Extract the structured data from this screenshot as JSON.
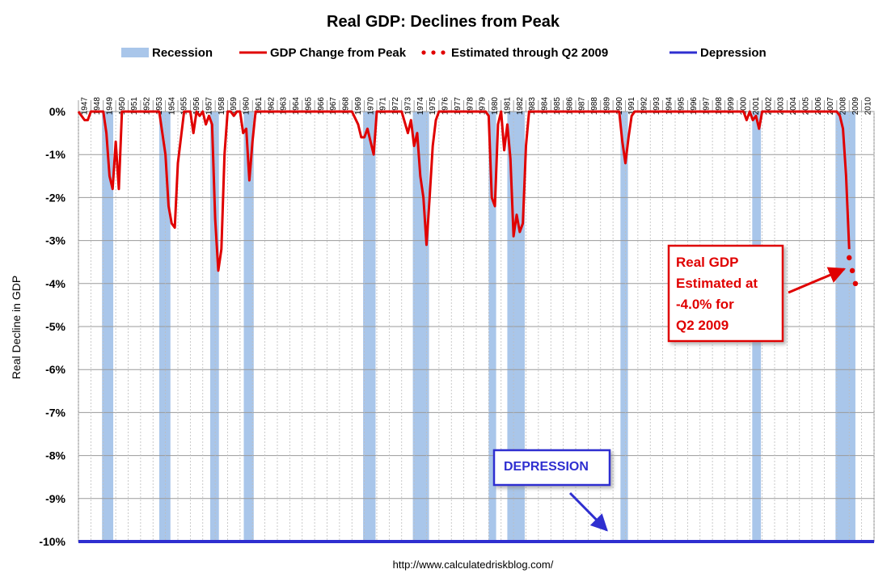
{
  "chart_data": {
    "type": "line",
    "title": "Real GDP: Declines from Peak",
    "ylabel": "Real Decline in GDP",
    "xlabel": "",
    "source": "http://www.calculatedriskblog.com/",
    "ylim": [
      -10,
      0
    ],
    "xlim": [
      1947,
      2011
    ],
    "yticks": [
      "0%",
      "-1%",
      "-2%",
      "-3%",
      "-4%",
      "-5%",
      "-6%",
      "-7%",
      "-8%",
      "-9%",
      "-10%"
    ],
    "ytick_values": [
      0,
      -1,
      -2,
      -3,
      -4,
      -5,
      -6,
      -7,
      -8,
      -9,
      -10
    ],
    "xticks": [
      "1947",
      "1948",
      "1949",
      "1950",
      "1951",
      "1952",
      "1953",
      "1954",
      "1955",
      "1956",
      "1957",
      "1958",
      "1959",
      "1960",
      "1961",
      "1962",
      "1963",
      "1964",
      "1965",
      "1966",
      "1967",
      "1968",
      "1969",
      "1970",
      "1971",
      "1972",
      "1973",
      "1974",
      "1975",
      "1976",
      "1977",
      "1978",
      "1979",
      "1980",
      "1981",
      "1982",
      "1983",
      "1984",
      "1985",
      "1986",
      "1987",
      "1988",
      "1989",
      "1990",
      "1991",
      "1992",
      "1993",
      "1994",
      "1995",
      "1996",
      "1997",
      "1998",
      "1999",
      "2000",
      "2001",
      "2002",
      "2003",
      "2004",
      "2005",
      "2006",
      "2007",
      "2008",
      "2009",
      "2010"
    ],
    "grid": true,
    "legend_position": "top",
    "legend": [
      {
        "label": "Recession",
        "kind": "band",
        "color": "#a9c6ea"
      },
      {
        "label": "GDP Change from Peak",
        "kind": "line",
        "color": "#e00000"
      },
      {
        "label": "Estimated through Q2 2009",
        "kind": "dots",
        "color": "#e00000"
      },
      {
        "label": "Depression",
        "kind": "line",
        "color": "#2f2fd0"
      }
    ],
    "recessions": [
      [
        1948.9,
        1949.8
      ],
      [
        1953.5,
        1954.4
      ],
      [
        1957.6,
        1958.3
      ],
      [
        1960.3,
        1961.1
      ],
      [
        1969.9,
        1970.9
      ],
      [
        1973.9,
        1975.2
      ],
      [
        1980.0,
        1980.6
      ],
      [
        1981.5,
        1982.9
      ],
      [
        1990.6,
        1991.2
      ],
      [
        2001.2,
        2001.9
      ],
      [
        2007.9,
        2009.5
      ]
    ],
    "series": [
      {
        "name": "GDP Change from Peak",
        "color": "#e00000",
        "style": "solid",
        "x": [
          1947.0,
          1947.25,
          1947.5,
          1947.75,
          1948.0,
          1948.25,
          1948.5,
          1948.75,
          1949.0,
          1949.25,
          1949.5,
          1949.75,
          1950.0,
          1950.25,
          1950.5,
          1951.0,
          1952.0,
          1953.0,
          1953.25,
          1953.5,
          1953.75,
          1954.0,
          1954.25,
          1954.5,
          1954.75,
          1955.0,
          1955.5,
          1956.0,
          1956.25,
          1956.5,
          1956.75,
          1957.0,
          1957.25,
          1957.5,
          1957.75,
          1958.0,
          1958.25,
          1958.5,
          1958.75,
          1959.0,
          1959.25,
          1959.5,
          1959.75,
          1960.0,
          1960.25,
          1960.5,
          1960.75,
          1961.0,
          1961.25,
          1961.5,
          1962.0,
          1965.0,
          1969.0,
          1969.5,
          1969.75,
          1970.0,
          1970.25,
          1970.5,
          1970.75,
          1971.0,
          1971.25,
          1972.0,
          1973.0,
          1973.5,
          1973.75,
          1974.0,
          1974.25,
          1974.5,
          1974.75,
          1975.0,
          1975.25,
          1975.5,
          1975.75,
          1976.0,
          1977.0,
          1979.0,
          1979.5,
          1979.75,
          1980.0,
          1980.25,
          1980.5,
          1980.75,
          1981.0,
          1981.25,
          1981.5,
          1981.75,
          1982.0,
          1982.25,
          1982.5,
          1982.75,
          1983.0,
          1983.25,
          1983.5,
          1984.0,
          1988.0,
          1990.5,
          1990.75,
          1991.0,
          1991.25,
          1991.5,
          1991.75,
          1992.0,
          1995.0,
          2000.0,
          2000.5,
          2000.75,
          2001.0,
          2001.25,
          2001.5,
          2001.75,
          2002.0,
          2004.0,
          2007.0,
          2007.5,
          2007.75,
          2008.0,
          2008.25,
          2008.5,
          2008.75,
          2009.0
        ],
        "y": [
          0,
          -0.1,
          -0.2,
          -0.2,
          0,
          0,
          0,
          0,
          0,
          -0.5,
          -1.5,
          -1.8,
          -0.7,
          -1.8,
          0,
          0,
          0,
          0,
          0,
          0,
          -0.5,
          -1.0,
          -2.2,
          -2.6,
          -2.7,
          -1.2,
          0,
          0,
          -0.5,
          0,
          -0.1,
          0,
          -0.3,
          -0.1,
          -0.3,
          -2.5,
          -3.7,
          -3.2,
          -1.0,
          0,
          0,
          -0.1,
          0,
          0,
          -0.5,
          -0.4,
          -1.6,
          -0.7,
          0,
          0,
          0,
          0,
          0,
          -0.3,
          -0.6,
          -0.6,
          -0.4,
          -0.7,
          -1.0,
          0,
          0,
          0,
          0,
          -0.5,
          -0.2,
          -0.8,
          -0.5,
          -1.5,
          -2.0,
          -3.1,
          -2.0,
          -0.8,
          -0.2,
          0,
          0,
          0,
          0,
          0,
          -0.1,
          -2.0,
          -2.2,
          -0.3,
          0,
          -0.9,
          -0.3,
          -1.1,
          -2.9,
          -2.4,
          -2.8,
          -2.6,
          -0.8,
          0,
          0,
          0,
          0,
          0,
          -0.7,
          -1.2,
          -0.6,
          -0.1,
          0,
          0,
          0,
          0,
          0,
          -0.2,
          0,
          -0.2,
          -0.1,
          -0.4,
          0,
          0,
          0,
          0,
          0,
          0,
          -0.1,
          -0.4,
          -1.5,
          -3.2
        ]
      },
      {
        "name": "Estimated through Q2 2009",
        "color": "#e00000",
        "style": "dots",
        "x": [
          2009.0,
          2009.25,
          2009.5
        ],
        "y": [
          -3.4,
          -3.7,
          -4.0
        ]
      },
      {
        "name": "Depression",
        "color": "#2f2fd0",
        "style": "solid",
        "x": [
          1947.0,
          2011.0
        ],
        "y": [
          -10,
          -10
        ]
      }
    ],
    "annotations": [
      {
        "id": "q2-estimate",
        "lines": [
          "Real GDP",
          "Estimated at",
          "-4.0%  for",
          "Q2 2009"
        ],
        "color": "#e00000",
        "arrow_to": [
          2009.25,
          -3.7
        ]
      },
      {
        "id": "depression",
        "lines": [
          "DEPRESSION"
        ],
        "color": "#2f2fd0",
        "arrow_to": [
          1989.5,
          -9.85
        ]
      }
    ]
  }
}
